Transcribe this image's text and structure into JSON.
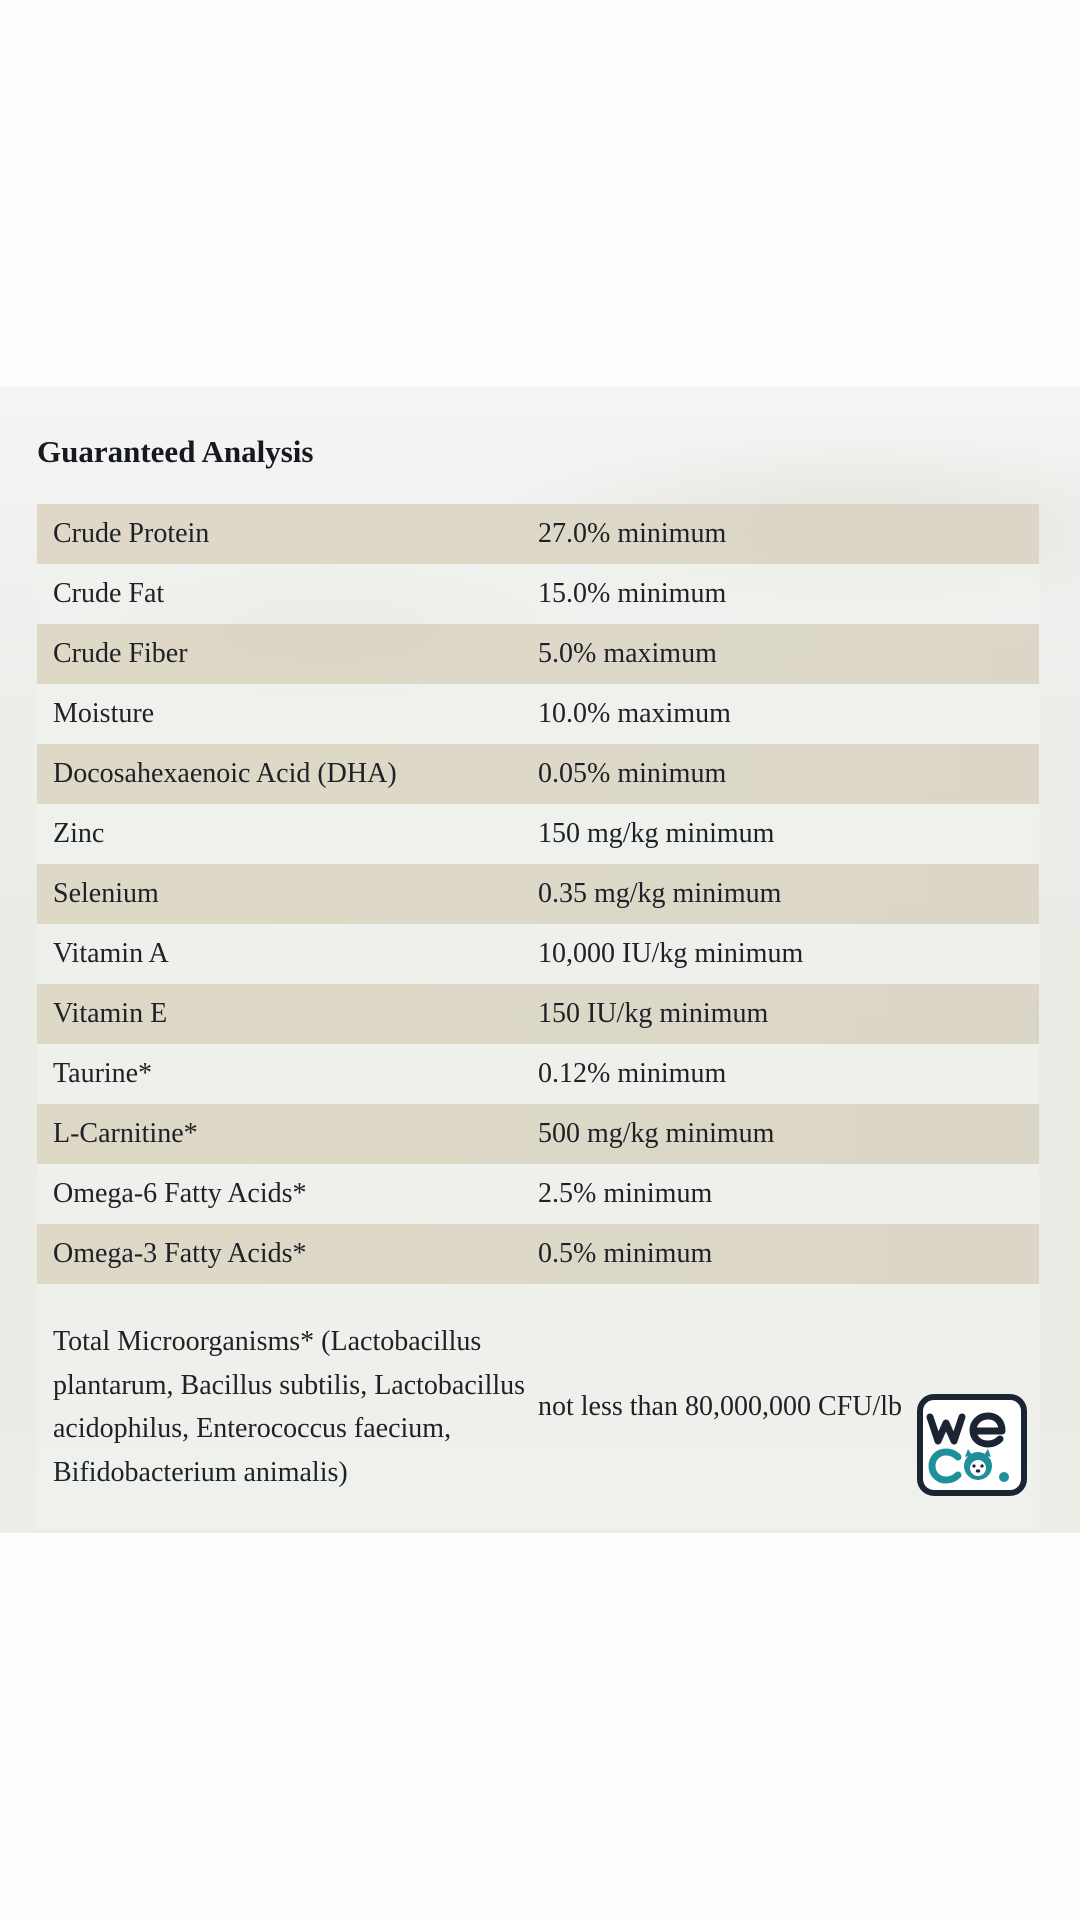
{
  "heading": "Guaranteed Analysis",
  "rows": [
    {
      "name": "Crude Protein",
      "value": "27.0% minimum"
    },
    {
      "name": "Crude Fat",
      "value": "15.0% minimum"
    },
    {
      "name": "Crude Fiber",
      "value": "5.0% maximum"
    },
    {
      "name": "Moisture",
      "value": "10.0% maximum"
    },
    {
      "name": "Docosahexaenoic Acid (DHA)",
      "value": "0.05% minimum"
    },
    {
      "name": "Zinc",
      "value": "150 mg/kg minimum"
    },
    {
      "name": "Selenium",
      "value": "0.35 mg/kg minimum"
    },
    {
      "name": "Vitamin A",
      "value": "10,000 IU/kg minimum"
    },
    {
      "name": "Vitamin E",
      "value": "150 IU/kg minimum"
    },
    {
      "name": "Taurine*",
      "value": "0.12% minimum"
    },
    {
      "name": "L-Carnitine*",
      "value": "500 mg/kg minimum"
    },
    {
      "name": "Omega-6 Fatty Acids*",
      "value": "2.5% minimum"
    },
    {
      "name": "Omega-3 Fatty Acids*",
      "value": "0.5% minimum"
    },
    {
      "name": "Total Microorganisms* (Lactobacillus plantarum, Bacillus subtilis, Lactobacillus acidophilus, Enterococcus faecium, Bifidobacterium animalis)",
      "value": "not less than 80,000,000 CFU/lb"
    }
  ],
  "logo": {
    "text": "weco.",
    "icon": "weco-logo-icon",
    "colors": {
      "dark": "#1b2433",
      "teal": "#1f8f9c"
    }
  },
  "colors": {
    "shaded_row": "#dcd5c3",
    "plain_row": "#f0f1ee",
    "text": "#1e2128"
  }
}
